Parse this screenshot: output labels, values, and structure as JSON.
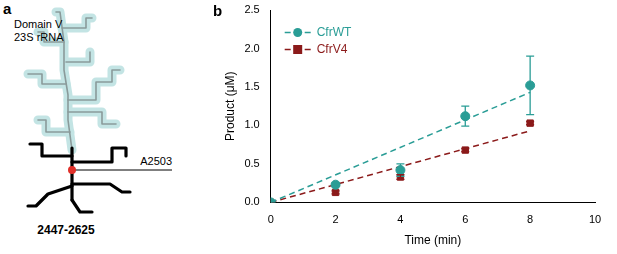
{
  "diagram": {
    "panel_label": "a",
    "title_lines": [
      "Domain V",
      "23S rRNA"
    ],
    "site_label": "A2503",
    "region_label": "2447-2625"
  },
  "chart_data": {
    "type": "scatter",
    "panel_label": "b",
    "x_label": "Time (min)",
    "y_label": "Product (μM)",
    "x": [
      0,
      2,
      4,
      6,
      8
    ],
    "series": [
      {
        "name": "CfrWT",
        "color": "#2a9d96",
        "marker": "circle",
        "line_style": "dashed",
        "values": [
          0,
          0.23,
          0.42,
          1.12,
          1.52
        ],
        "errors": [
          0,
          0.02,
          0.08,
          0.13,
          0.38
        ],
        "fit": {
          "x": [
            0,
            8
          ],
          "values": [
            0,
            1.43
          ]
        }
      },
      {
        "name": "CfrV4",
        "color": "#8b1a1a",
        "marker": "square",
        "line_style": "dashed",
        "values": [
          0,
          0.13,
          0.33,
          0.68,
          1.03
        ],
        "errors": [
          0,
          0.02,
          0.03,
          0.02,
          0.02
        ],
        "fit": {
          "x": [
            0,
            8
          ],
          "values": [
            0,
            0.93
          ]
        }
      }
    ],
    "xlim": [
      0,
      10
    ],
    "xticks": [
      0,
      2,
      4,
      6,
      8,
      10
    ],
    "ylim": [
      0,
      2.5
    ],
    "yticks": [
      {
        "value": 0,
        "label": "0.0"
      },
      0.5,
      {
        "value": 1,
        "label": "1.0"
      },
      1.5,
      {
        "value": 2,
        "label": "2.0"
      },
      2.5
    ],
    "grid": false,
    "legend": "upper left"
  }
}
